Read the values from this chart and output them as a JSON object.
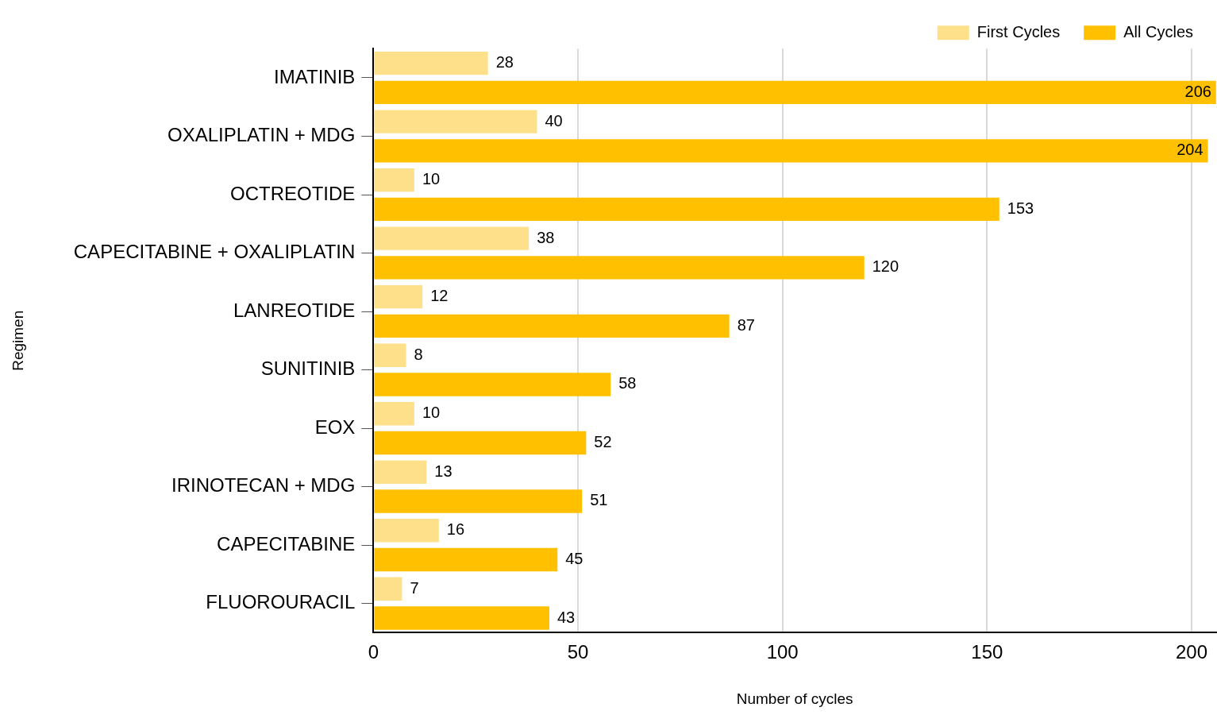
{
  "chart_data": {
    "type": "bar",
    "orientation": "horizontal",
    "xlabel": "Number of cycles",
    "ylabel": "Regimen",
    "categories": [
      "IMATINIB",
      "OXALIPLATIN + MDG",
      "OCTREOTIDE",
      "CAPECITABINE + OXALIPLATIN",
      "LANREOTIDE",
      "SUNITINIB",
      "EOX",
      "IRINOTECAN + MDG",
      "CAPECITABINE",
      "FLUOROURACIL"
    ],
    "series": [
      {
        "name": "First Cycles",
        "color": "#ffe08a",
        "values": [
          28,
          40,
          10,
          38,
          12,
          8,
          10,
          13,
          16,
          7
        ]
      },
      {
        "name": "All Cycles",
        "color": "#ffc000",
        "values": [
          206,
          204,
          153,
          120,
          87,
          58,
          52,
          51,
          45,
          43
        ]
      }
    ],
    "xlim": [
      0,
      206
    ],
    "xticks": [
      0,
      50,
      100,
      150,
      200
    ],
    "grid": "x",
    "legend": "top right",
    "data_labels": true
  }
}
